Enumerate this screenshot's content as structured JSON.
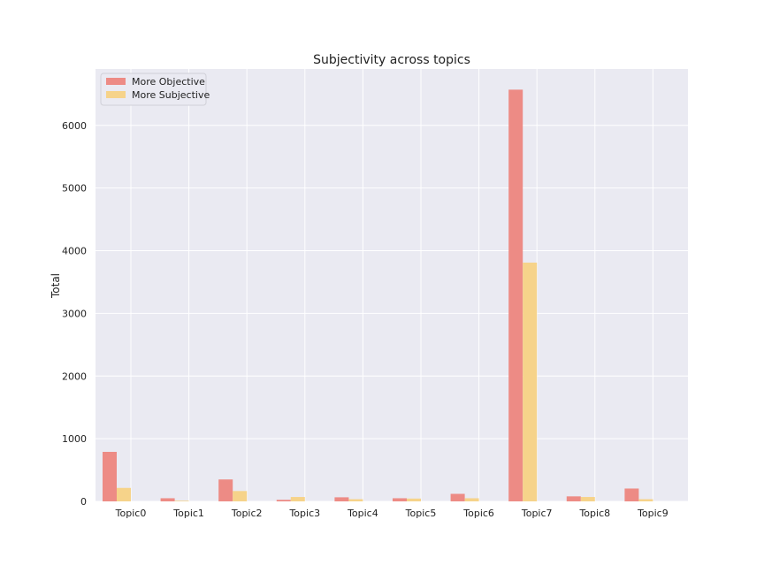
{
  "chart_data": {
    "type": "bar",
    "title": "Subjectivity across topics",
    "xlabel": "",
    "ylabel": "Total",
    "categories": [
      "Topic0",
      "Topic1",
      "Topic2",
      "Topic3",
      "Topic4",
      "Topic5",
      "Topic6",
      "Topic7",
      "Topic8",
      "Topic9"
    ],
    "series": [
      {
        "name": "More Objective",
        "color": "#ed8b85",
        "values": [
          790,
          50,
          350,
          25,
          65,
          50,
          120,
          6570,
          80,
          205
        ]
      },
      {
        "name": "More Subjective",
        "color": "#f6d38a",
        "values": [
          215,
          10,
          165,
          70,
          35,
          45,
          50,
          3810,
          70,
          35
        ]
      }
    ],
    "ylim": [
      0,
      6900
    ],
    "yticks": [
      0,
      1000,
      2000,
      3000,
      4000,
      5000,
      6000
    ],
    "grid": true,
    "legend": "upper-left",
    "background": "#eaeaf2"
  }
}
